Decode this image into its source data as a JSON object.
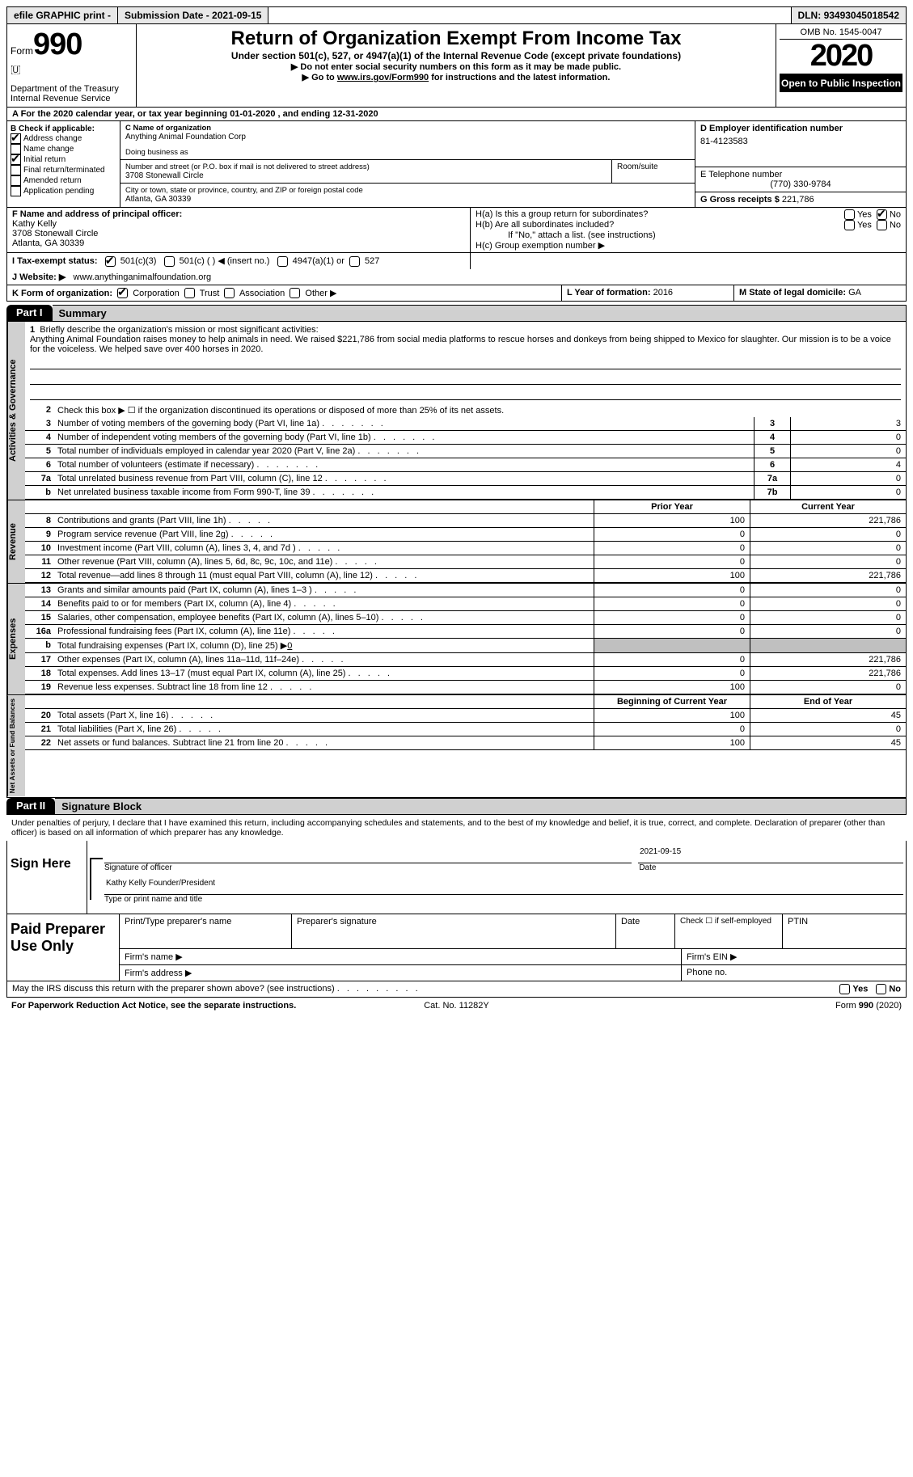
{
  "topbar": {
    "efile": "efile GRAPHIC print -",
    "sub_label": "Submission Date -",
    "sub_date": "2021-09-15",
    "dln_label": "DLN:",
    "dln": "93493045018542"
  },
  "header": {
    "form_word": "Form",
    "form_no": "990",
    "dept1": "Department of the Treasury",
    "dept2": "Internal Revenue Service",
    "title": "Return of Organization Exempt From Income Tax",
    "sub1": "Under section 501(c), 527, or 4947(a)(1) of the Internal Revenue Code (except private foundations)",
    "sub2": "▶ Do not enter social security numbers on this form as it may be made public.",
    "sub3a": "▶ Go to",
    "sub3b": "www.irs.gov/Form990",
    "sub3c": "for instructions and the latest information.",
    "omb": "OMB No. 1545-0047",
    "year": "2020",
    "inspect": "Open to Public Inspection"
  },
  "a_row": "A For the 2020 calendar year, or tax year beginning 01-01-2020    , and ending 12-31-2020",
  "b": {
    "label": "B Check if applicable:",
    "items": [
      {
        "txt": "Address change",
        "c": true
      },
      {
        "txt": "Name change",
        "c": false
      },
      {
        "txt": "Initial return",
        "c": true
      },
      {
        "txt": "Final return/terminated",
        "c": false
      },
      {
        "txt": "Amended return",
        "c": false
      },
      {
        "txt": "Application pending",
        "c": false
      }
    ]
  },
  "c": {
    "name_lbl": "C Name of organization",
    "name": "Anything Animal Foundation Corp",
    "dba_lbl": "Doing business as",
    "street_lbl": "Number and street (or P.O. box if mail is not delivered to street address)",
    "street": "3708 Stonewall Circle",
    "room_lbl": "Room/suite",
    "city_lbl": "City or town, state or province, country, and ZIP or foreign postal code",
    "city": "Atlanta, GA   30339"
  },
  "d": {
    "ein_lbl": "D Employer identification number",
    "ein": "81-4123583",
    "tel_lbl": "E Telephone number",
    "tel": "(770) 330-9784",
    "gross_lbl": "G Gross receipts $",
    "gross": "221,786"
  },
  "f": {
    "lbl": "F  Name and address of principal officer:",
    "name": "Kathy Kelly",
    "street": "3708 Stonewall Circle",
    "city": "Atlanta, GA   30339"
  },
  "h": {
    "a": "H(a)  Is this a group return for subordinates?",
    "b": "H(b)  Are all subordinates included?",
    "note": "If \"No,\" attach a list. (see instructions)",
    "c": "H(c)  Group exemption number ▶",
    "yes": "Yes",
    "no": "No"
  },
  "i": {
    "lbl": "I    Tax-exempt status:",
    "c1": "501(c)(3)",
    "c2": "501(c) (  ) ◀ (insert no.)",
    "c3": "4947(a)(1) or",
    "c4": "527"
  },
  "j": {
    "lbl": "J    Website: ▶",
    "val": "www.anythinganimalfoundation.org"
  },
  "k": {
    "lbl": "K Form of organization:",
    "corp": "Corporation",
    "trust": "Trust",
    "assn": "Association",
    "other": "Other ▶"
  },
  "l": {
    "lbl": "L Year of formation:",
    "val": "2016"
  },
  "m": {
    "lbl": "M State of legal domicile:",
    "val": "GA"
  },
  "parts": {
    "p1": "Part I",
    "p1t": "Summary",
    "p2": "Part II",
    "p2t": "Signature Block"
  },
  "sections": {
    "gov": "Activities & Governance",
    "rev": "Revenue",
    "exp": "Expenses",
    "net": "Net Assets or Fund Balances"
  },
  "p1": {
    "l1": "Briefly describe the organization's mission or most significant activities:",
    "mission": "Anything Animal Foundation raises money to help animals in need. We raised $221,786 from social media platforms to rescue horses and donkeys from being shipped to Mexico for slaughter. Our mission is to be a voice for the voiceless. We helped save over 400 horses in 2020.",
    "l2": "Check this box ▶ ☐  if the organization discontinued its operations or disposed of more than 25% of its net assets.",
    "lines_gov": [
      {
        "n": "3",
        "d": "Number of voting members of the governing body (Part VI, line 1a)",
        "b": "3",
        "v": "3"
      },
      {
        "n": "4",
        "d": "Number of independent voting members of the governing body (Part VI, line 1b)",
        "b": "4",
        "v": "0"
      },
      {
        "n": "5",
        "d": "Total number of individuals employed in calendar year 2020 (Part V, line 2a)",
        "b": "5",
        "v": "0"
      },
      {
        "n": "6",
        "d": "Total number of volunteers (estimate if necessary)",
        "b": "6",
        "v": "4"
      },
      {
        "n": "7a",
        "d": "Total unrelated business revenue from Part VIII, column (C), line 12",
        "b": "7a",
        "v": "0"
      },
      {
        "n": "b",
        "d": "Net unrelated business taxable income from Form 990-T, line 39",
        "b": "7b",
        "v": "0"
      }
    ],
    "hdr_prior": "Prior Year",
    "hdr_curr": "Current Year",
    "lines_rev": [
      {
        "n": "8",
        "d": "Contributions and grants (Part VIII, line 1h)",
        "p": "100",
        "c": "221,786"
      },
      {
        "n": "9",
        "d": "Program service revenue (Part VIII, line 2g)",
        "p": "0",
        "c": "0"
      },
      {
        "n": "10",
        "d": "Investment income (Part VIII, column (A), lines 3, 4, and 7d )",
        "p": "0",
        "c": "0"
      },
      {
        "n": "11",
        "d": "Other revenue (Part VIII, column (A), lines 5, 6d, 8c, 9c, 10c, and 11e)",
        "p": "0",
        "c": "0"
      },
      {
        "n": "12",
        "d": "Total revenue—add lines 8 through 11 (must equal Part VIII, column (A), line 12)",
        "p": "100",
        "c": "221,786"
      }
    ],
    "lines_exp": [
      {
        "n": "13",
        "d": "Grants and similar amounts paid (Part IX, column (A), lines 1–3 )",
        "p": "0",
        "c": "0"
      },
      {
        "n": "14",
        "d": "Benefits paid to or for members (Part IX, column (A), line 4)",
        "p": "0",
        "c": "0"
      },
      {
        "n": "15",
        "d": "Salaries, other compensation, employee benefits (Part IX, column (A), lines 5–10)",
        "p": "0",
        "c": "0"
      },
      {
        "n": "16a",
        "d": "Professional fundraising fees (Part IX, column (A), line 11e)",
        "p": "0",
        "c": "0"
      }
    ],
    "l16b": "Total fundraising expenses (Part IX, column (D), line 25) ▶",
    "l16b_v": "0",
    "lines_exp2": [
      {
        "n": "17",
        "d": "Other expenses (Part IX, column (A), lines 11a–11d, 11f–24e)",
        "p": "0",
        "c": "221,786"
      },
      {
        "n": "18",
        "d": "Total expenses. Add lines 13–17 (must equal Part IX, column (A), line 25)",
        "p": "0",
        "c": "221,786"
      },
      {
        "n": "19",
        "d": "Revenue less expenses. Subtract line 18 from line 12",
        "p": "100",
        "c": "0"
      }
    ],
    "hdr_beg": "Beginning of Current Year",
    "hdr_end": "End of Year",
    "lines_net": [
      {
        "n": "20",
        "d": "Total assets (Part X, line 16)",
        "p": "100",
        "c": "45"
      },
      {
        "n": "21",
        "d": "Total liabilities (Part X, line 26)",
        "p": "0",
        "c": "0"
      },
      {
        "n": "22",
        "d": "Net assets or fund balances. Subtract line 21 from line 20",
        "p": "100",
        "c": "45"
      }
    ]
  },
  "penalty": "Under penalties of perjury, I declare that I have examined this return, including accompanying schedules and statements, and to the best of my knowledge and belief, it is true, correct, and complete. Declaration of preparer (other than officer) is based on all information of which preparer has any knowledge.",
  "sign": {
    "here": "Sign Here",
    "sig_officer": "Signature of officer",
    "date_lbl": "Date",
    "date": "2021-09-15",
    "name": "Kathy Kelly  Founder/President",
    "type_lbl": "Type or print name and title"
  },
  "paid": {
    "lbl": "Paid Preparer Use Only",
    "r1c1": "Print/Type preparer's name",
    "r1c2": "Preparer's signature",
    "r1c3": "Date",
    "r1c4a": "Check ☐ if self-employed",
    "r1c5": "PTIN",
    "r2a": "Firm's name   ▶",
    "r2b": "Firm's EIN ▶",
    "r3a": "Firm's address ▶",
    "r3b": "Phone no."
  },
  "discuss": "May the IRS discuss this return with the preparer shown above? (see instructions)",
  "footer": {
    "pra": "For Paperwork Reduction Act Notice, see the separate instructions.",
    "cat": "Cat. No. 11282Y",
    "form": "Form 990 (2020)"
  },
  "dots5": "  .     .     .     .     .",
  "dots7": "  .     .     .     .     .     .     .",
  "dots9": "  .     .     .     .     .     .     .     .     ."
}
